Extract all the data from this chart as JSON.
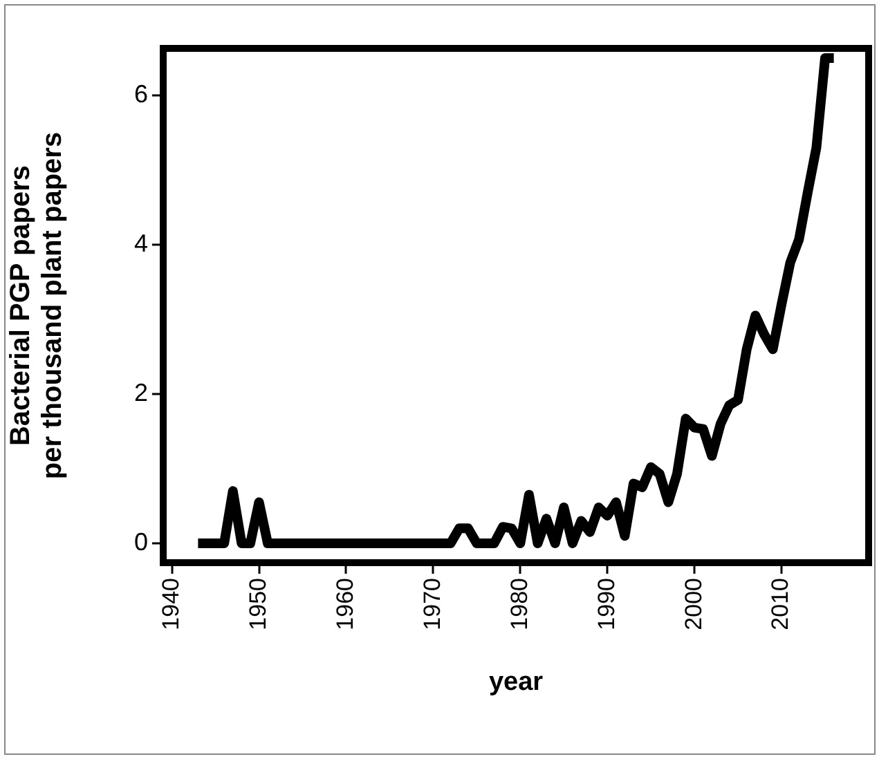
{
  "chart_data": {
    "type": "line",
    "xlabel": "year",
    "ylabel": "Bacterial PGP papers\nper thousand plant papers",
    "x": [
      1943,
      1944,
      1945,
      1946,
      1947,
      1948,
      1949,
      1950,
      1951,
      1952,
      1953,
      1954,
      1955,
      1956,
      1957,
      1958,
      1959,
      1960,
      1961,
      1962,
      1963,
      1964,
      1965,
      1966,
      1967,
      1968,
      1969,
      1970,
      1971,
      1972,
      1973,
      1974,
      1975,
      1976,
      1977,
      1978,
      1979,
      1980,
      1981,
      1982,
      1983,
      1984,
      1985,
      1986,
      1987,
      1988,
      1989,
      1990,
      1991,
      1992,
      1993,
      1994,
      1995,
      1996,
      1997,
      1998,
      1999,
      2000,
      2001,
      2002,
      2003,
      2004,
      2005,
      2006,
      2007,
      2008,
      2009,
      2010,
      2011,
      2012,
      2013,
      2014,
      2015,
      2016
    ],
    "series": [
      {
        "color": "#000000",
        "values": [
          0,
          0,
          0,
          0,
          0.7,
          0,
          0,
          0.55,
          0,
          0,
          0,
          0,
          0,
          0,
          0,
          0,
          0,
          0,
          0,
          0,
          0,
          0,
          0,
          0,
          0,
          0,
          0,
          0,
          0,
          0,
          0.2,
          0.2,
          0,
          0,
          0,
          0.22,
          0.2,
          0,
          0.65,
          0,
          0.33,
          0,
          0.48,
          0,
          0.3,
          0.15,
          0.48,
          0.37,
          0.55,
          0.1,
          0.8,
          0.75,
          1.02,
          0.93,
          0.55,
          0.93,
          1.67,
          1.55,
          1.53,
          1.17,
          1.6,
          1.85,
          1.92,
          2.6,
          3.05,
          2.8,
          2.6,
          3.2,
          3.76,
          4.07,
          4.7,
          5.3,
          6.5,
          6.5
        ]
      }
    ],
    "xlim": [
      1939,
      2020
    ],
    "xticks": [
      1940,
      1950,
      1960,
      1970,
      1980,
      1990,
      2000,
      2010
    ],
    "ylim": [
      -0.26,
      6.63
    ],
    "yticks": [
      0,
      2,
      4,
      6
    ],
    "grid": false,
    "legend": false,
    "marker": "none",
    "line_style": "solid"
  }
}
